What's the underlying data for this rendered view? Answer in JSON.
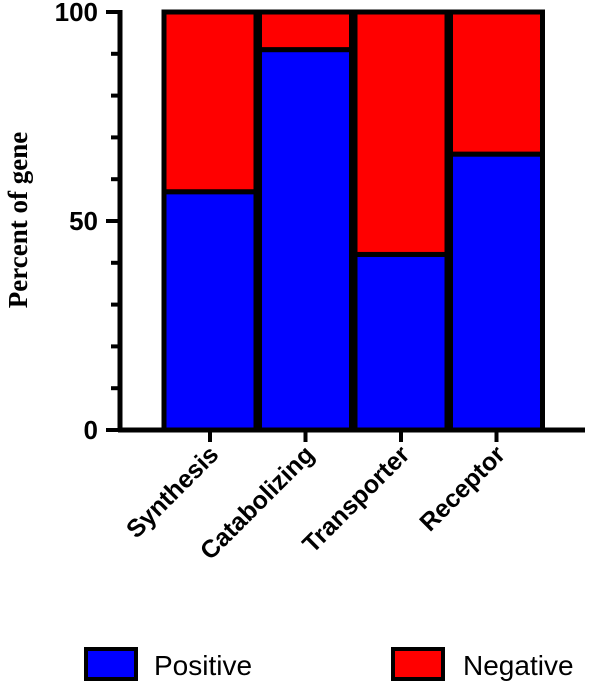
{
  "chart_data": {
    "type": "bar",
    "stacked": true,
    "categories": [
      "Synthesis",
      "Catabolizing",
      "Transporter",
      "Receptor"
    ],
    "series": [
      {
        "name": "Positive",
        "color": "#0000ff",
        "values": [
          57,
          91,
          42,
          66
        ]
      },
      {
        "name": "Negative",
        "color": "#ff0000",
        "values": [
          43,
          9,
          58,
          34
        ]
      }
    ],
    "ylabel": "Percent of gene",
    "xlabel": "",
    "ylim": [
      0,
      100
    ],
    "yticks": [
      0,
      50,
      100
    ],
    "legend_position": "bottom",
    "grid": false
  }
}
